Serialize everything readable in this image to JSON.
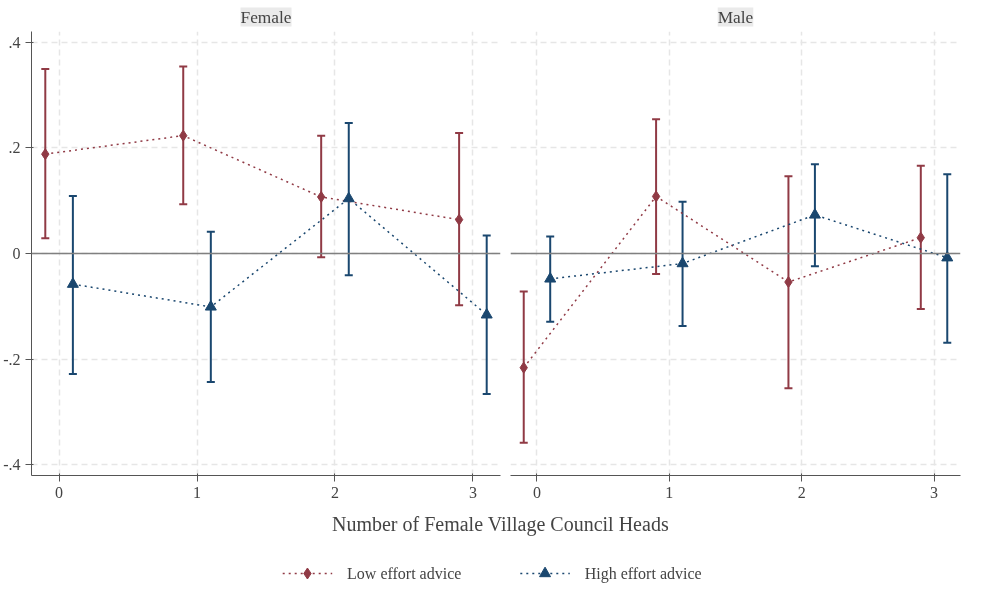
{
  "chart_data": [
    {
      "type": "line",
      "title": "Female",
      "xlabel": "Number of Female Village Council Heads",
      "legend": "bottom",
      "grid": true,
      "line_style": "dotted",
      "xlim": [
        -0.2,
        3.2
      ],
      "xticks": [
        0,
        1,
        2,
        3
      ],
      "ylim": [
        -0.42,
        0.42
      ],
      "yticks": [
        {
          "value": 0.4,
          "label": ".4"
        },
        {
          "value": 0.2,
          "label": ".2"
        },
        0,
        {
          "value": -0.2,
          "label": "-.2"
        },
        {
          "value": -0.4,
          "label": "-.4"
        }
      ],
      "ref_lines": [
        {
          "axis": "y",
          "value": 0,
          "color": "#808080"
        }
      ],
      "series": [
        {
          "name": "Low effort advice",
          "color": "#903a45",
          "marker": "diamond",
          "x": [
            -0.1,
            0.9,
            1.9,
            2.9
          ],
          "values": [
            0.188,
            0.223,
            0.107,
            0.064
          ],
          "errors": [
            [
              0.029,
              0.349
            ],
            [
              0.093,
              0.354
            ],
            [
              -0.007,
              0.223
            ],
            [
              -0.098,
              0.228
            ]
          ]
        },
        {
          "name": "High effort advice",
          "color": "#1a476f",
          "marker": "triangle",
          "x": [
            0.1,
            1.1,
            2.1,
            3.1
          ],
          "values": [
            -0.058,
            -0.101,
            0.104,
            -0.116
          ],
          "errors": [
            [
              -0.228,
              0.109
            ],
            [
              -0.243,
              0.041
            ],
            [
              -0.041,
              0.247
            ],
            [
              -0.266,
              0.034
            ]
          ]
        }
      ]
    },
    {
      "type": "line",
      "title": "Male",
      "grid": true,
      "line_style": "dotted",
      "tick_labels": "x",
      "xlim": [
        -0.2,
        3.2
      ],
      "xticks": [
        0,
        1,
        2,
        3
      ],
      "ylim": [
        -0.42,
        0.42
      ],
      "yticks": [
        {
          "value": 0.4,
          "label": null
        },
        {
          "value": 0.2,
          "label": null
        },
        {
          "value": 0,
          "label": null
        },
        {
          "value": -0.2,
          "label": null
        },
        {
          "value": -0.4,
          "label": null
        }
      ],
      "ref_lines": [
        {
          "axis": "y",
          "value": 0,
          "color": "#808080"
        }
      ],
      "series": [
        {
          "color": "#903a45",
          "marker": "diamond",
          "x": [
            -0.1,
            0.9,
            1.9,
            2.9
          ],
          "values": [
            -0.216,
            0.108,
            -0.054,
            0.03
          ],
          "errors": [
            [
              -0.358,
              -0.072
            ],
            [
              -0.039,
              0.254
            ],
            [
              -0.255,
              0.146
            ],
            [
              -0.105,
              0.166
            ]
          ]
        },
        {
          "color": "#1a476f",
          "marker": "triangle",
          "x": [
            0.1,
            1.1,
            2.1,
            3.1
          ],
          "values": [
            -0.048,
            -0.019,
            0.073,
            -0.008
          ],
          "errors": [
            [
              -0.129,
              0.032
            ],
            [
              -0.137,
              0.098
            ],
            [
              -0.024,
              0.169
            ],
            [
              -0.169,
              0.15
            ]
          ]
        }
      ]
    }
  ]
}
